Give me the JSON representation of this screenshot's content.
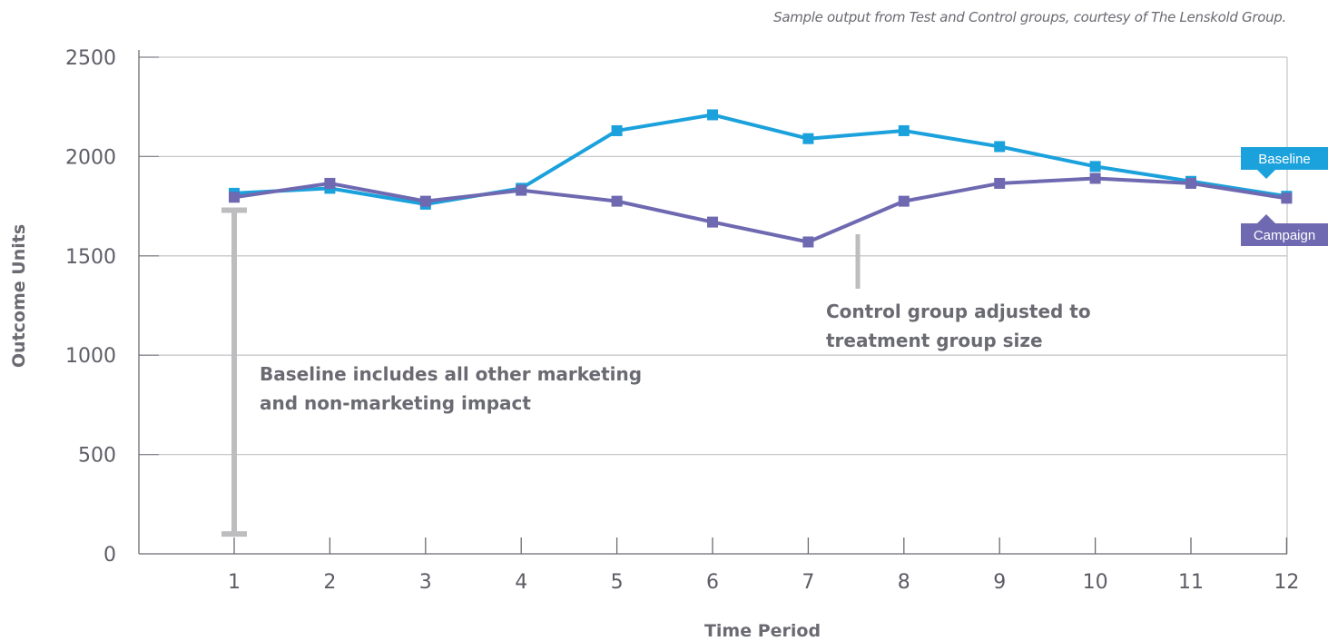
{
  "caption": "Sample output from Test and Control groups, courtesy of The Lenskold Group.",
  "chart_data": {
    "type": "line",
    "title": "",
    "xlabel": "Time Period",
    "ylabel": "Outcome Units",
    "x": [
      1,
      2,
      3,
      4,
      5,
      6,
      7,
      8,
      9,
      10,
      11,
      12
    ],
    "x_tick_labels": [
      "1",
      "2",
      "3",
      "4",
      "5",
      "6",
      "7",
      "8",
      "9",
      "10",
      "11",
      "12"
    ],
    "ylim": [
      0,
      2500
    ],
    "y_ticks": [
      0,
      500,
      1000,
      1500,
      2000,
      2500
    ],
    "grid": "horizontal",
    "series": [
      {
        "name": "Baseline",
        "color": "#1ba1dc",
        "values": [
          1815,
          1840,
          1760,
          1840,
          2130,
          2210,
          2090,
          2130,
          2050,
          1950,
          1875,
          1800
        ]
      },
      {
        "name": "Campaign",
        "color": "#6e69b0",
        "values": [
          1795,
          1865,
          1775,
          1830,
          1775,
          1670,
          1570,
          1775,
          1865,
          1890,
          1865,
          1790
        ]
      }
    ],
    "annotations": [
      {
        "lines": [
          "Baseline includes all other marketing",
          "and non-marketing impact"
        ],
        "range": [
          100,
          1730
        ]
      },
      {
        "lines": [
          "Control group adjusted to",
          "treatment group size"
        ]
      }
    ]
  }
}
